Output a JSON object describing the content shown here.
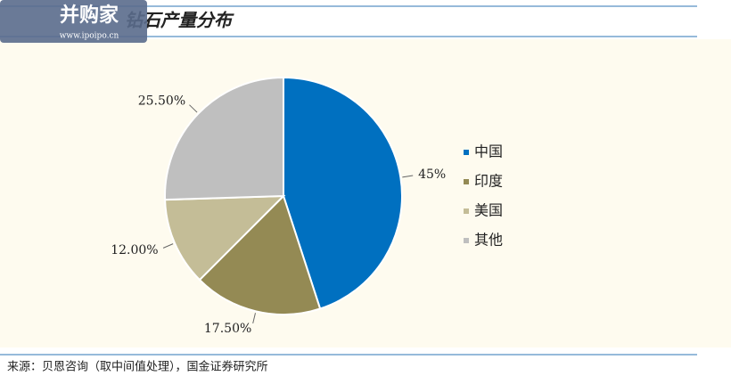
{
  "chart_data": {
    "type": "pie",
    "title": "钻石产量分布",
    "categories": [
      "中国",
      "印度",
      "美国",
      "其他"
    ],
    "values": [
      45,
      17.5,
      12,
      25.5
    ],
    "value_labels": [
      "45%",
      "17.50%",
      "12.00%",
      "25.50%"
    ],
    "colors": [
      "#0070c0",
      "#948a54",
      "#c4bd97",
      "#bfbfbf"
    ],
    "legend": "right",
    "source": "来源：贝恩咨询（取中间值处理），国金证券研究所"
  },
  "watermark": {
    "name": "并购家",
    "url": "www.ipoipo.cn"
  }
}
